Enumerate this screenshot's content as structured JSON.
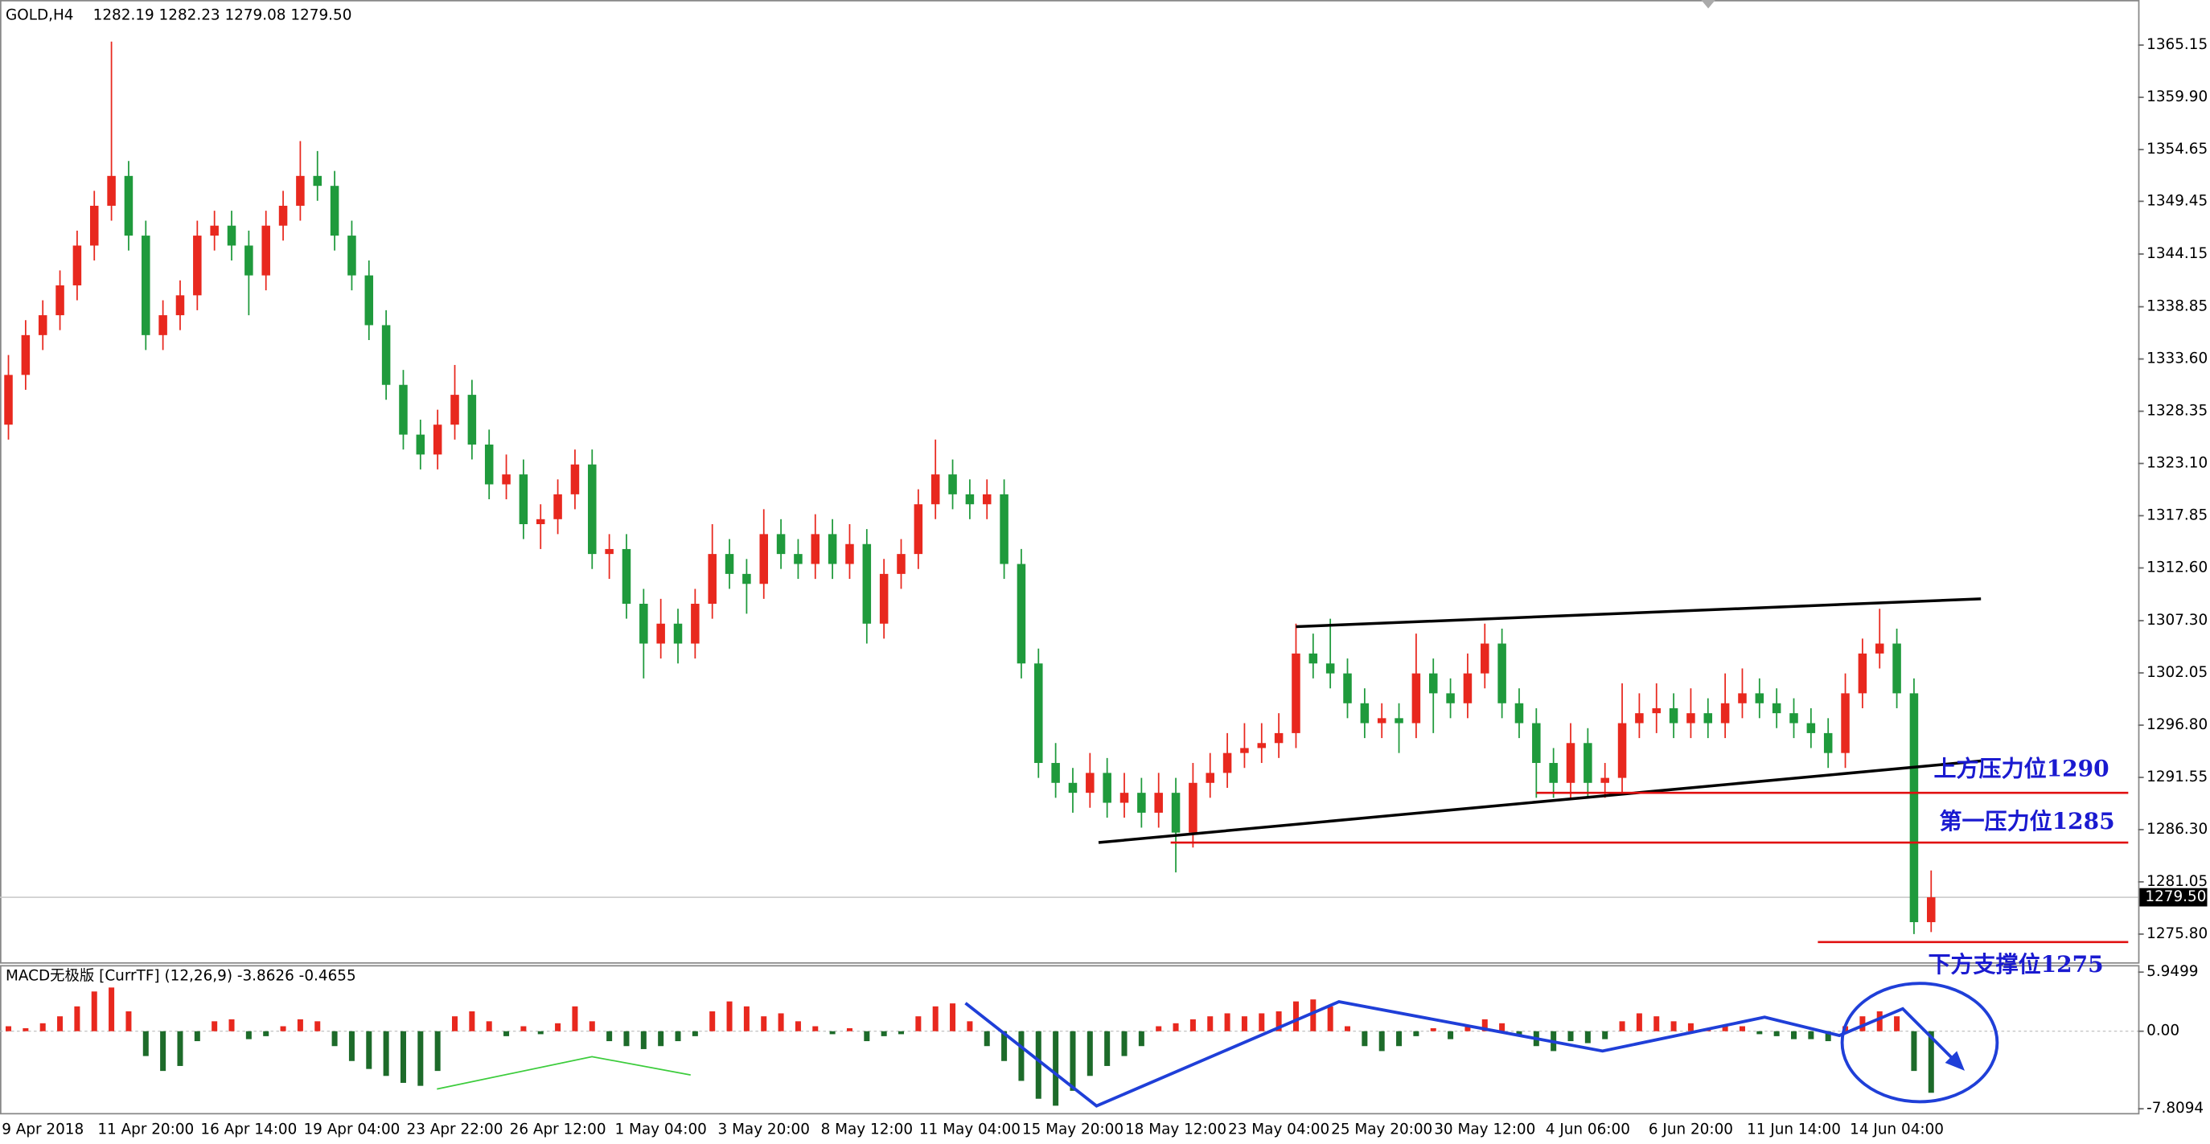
{
  "chart_data": [
    {
      "type": "candlestick",
      "title": "GOLD,H4",
      "ohlc": "1282.19 1282.23 1279.08 1279.50",
      "up_color": "#e8281e",
      "down_color": "#1f9a3c",
      "categories": [
        null,
        null,
        "9 Apr 2018",
        null,
        null,
        null,
        null,
        null,
        "11 Apr 20:00",
        null,
        null,
        null,
        null,
        null,
        "16 Apr 14:00",
        null,
        null,
        null,
        null,
        null,
        "19 Apr 04:00",
        null,
        null,
        null,
        null,
        null,
        "23 Apr 22:00",
        null,
        null,
        null,
        null,
        null,
        "26 Apr 12:00",
        null,
        null,
        null,
        null,
        null,
        "1 May 04:00",
        null,
        null,
        null,
        null,
        null,
        "3 May 20:00",
        null,
        null,
        null,
        null,
        null,
        "8 May 12:00",
        null,
        null,
        null,
        null,
        null,
        "11 May 04:00",
        null,
        null,
        null,
        null,
        null,
        "15 May 20:00",
        null,
        null,
        null,
        null,
        null,
        "18 May 12:00",
        null,
        null,
        null,
        null,
        null,
        "23 May 04:00",
        null,
        null,
        null,
        null,
        null,
        "25 May 20:00",
        null,
        null,
        null,
        null,
        null,
        "30 May 12:00",
        null,
        null,
        null,
        null,
        null,
        "4 Jun 06:00",
        null,
        null,
        null,
        null,
        null,
        "6 Jun 20:00",
        null,
        null,
        null,
        null,
        null,
        "11 Jun 14:00",
        null,
        null,
        null,
        null,
        null,
        "14 Jun 04:00",
        null,
        null
      ],
      "candles": [
        [
          1327,
          1334,
          1325.5,
          1332
        ],
        [
          1332,
          1337.5,
          1330.5,
          1336
        ],
        [
          1336,
          1339.5,
          1334.5,
          1338
        ],
        [
          1338,
          1342.5,
          1336.5,
          1341
        ],
        [
          1341,
          1346.5,
          1339.5,
          1345
        ],
        [
          1345,
          1350.5,
          1343.5,
          1349
        ],
        [
          1349,
          1365.5,
          1347.5,
          1352
        ],
        [
          1352,
          1353.5,
          1344.5,
          1346
        ],
        [
          1346,
          1347.5,
          1334.5,
          1336
        ],
        [
          1336,
          1339.5,
          1334.5,
          1338
        ],
        [
          1338,
          1341.5,
          1336.5,
          1340
        ],
        [
          1340,
          1347.5,
          1338.5,
          1346
        ],
        [
          1346,
          1348.5,
          1344.5,
          1347
        ],
        [
          1347,
          1348.5,
          1343.5,
          1345
        ],
        [
          1345,
          1346.5,
          1338,
          1342
        ],
        [
          1342,
          1348.5,
          1340.5,
          1347
        ],
        [
          1347,
          1350.5,
          1345.5,
          1349
        ],
        [
          1349,
          1355.5,
          1347.5,
          1352
        ],
        [
          1352,
          1354.5,
          1349.5,
          1351
        ],
        [
          1351,
          1352.5,
          1344.5,
          1346
        ],
        [
          1346,
          1347.5,
          1340.5,
          1342
        ],
        [
          1342,
          1343.5,
          1335.5,
          1337
        ],
        [
          1337,
          1338.5,
          1329.5,
          1331
        ],
        [
          1331,
          1332.5,
          1324.5,
          1326
        ],
        [
          1326,
          1327.5,
          1322.5,
          1324
        ],
        [
          1324,
          1328.5,
          1322.5,
          1327
        ],
        [
          1327,
          1333,
          1325.5,
          1330
        ],
        [
          1330,
          1331.5,
          1323.5,
          1325
        ],
        [
          1325,
          1326.5,
          1319.5,
          1321
        ],
        [
          1321,
          1324,
          1319.5,
          1322
        ],
        [
          1322,
          1323.5,
          1315.5,
          1317
        ],
        [
          1317,
          1319,
          1314.5,
          1317.5
        ],
        [
          1317.5,
          1321.5,
          1316,
          1320
        ],
        [
          1320,
          1324.5,
          1318.5,
          1323
        ],
        [
          1323,
          1324.5,
          1312.5,
          1314
        ],
        [
          1314,
          1316,
          1311.5,
          1314.5
        ],
        [
          1314.5,
          1316,
          1307.5,
          1309
        ],
        [
          1309,
          1310.5,
          1301.5,
          1305
        ],
        [
          1305,
          1309.5,
          1303.5,
          1307
        ],
        [
          1307,
          1308.5,
          1303,
          1305
        ],
        [
          1305,
          1310.5,
          1303.5,
          1309
        ],
        [
          1309,
          1317,
          1307.5,
          1314
        ],
        [
          1314,
          1315.5,
          1310.5,
          1312
        ],
        [
          1312,
          1313.5,
          1308,
          1311
        ],
        [
          1311,
          1318.5,
          1309.5,
          1316
        ],
        [
          1316,
          1317.5,
          1312.5,
          1314
        ],
        [
          1314,
          1315.5,
          1311.5,
          1313
        ],
        [
          1313,
          1318,
          1311.5,
          1316
        ],
        [
          1316,
          1317.5,
          1311.5,
          1313
        ],
        [
          1313,
          1317,
          1311.5,
          1315
        ],
        [
          1315,
          1316.5,
          1305,
          1307
        ],
        [
          1307,
          1313.5,
          1305.5,
          1312
        ],
        [
          1312,
          1315.5,
          1310.5,
          1314
        ],
        [
          1314,
          1320.5,
          1312.5,
          1319
        ],
        [
          1319,
          1325.5,
          1317.5,
          1322
        ],
        [
          1322,
          1323.5,
          1318.5,
          1320
        ],
        [
          1320,
          1321.5,
          1317.5,
          1319
        ],
        [
          1319,
          1321.5,
          1317.5,
          1320
        ],
        [
          1320,
          1321.5,
          1311.5,
          1313
        ],
        [
          1313,
          1314.5,
          1301.5,
          1303
        ],
        [
          1303,
          1304.5,
          1291.5,
          1293
        ],
        [
          1293,
          1295,
          1289.5,
          1291
        ],
        [
          1291,
          1292.5,
          1288,
          1290
        ],
        [
          1290,
          1294,
          1288.5,
          1292
        ],
        [
          1292,
          1293.5,
          1287.5,
          1289
        ],
        [
          1289,
          1292,
          1287.5,
          1290
        ],
        [
          1290,
          1291.5,
          1286.5,
          1288
        ],
        [
          1288,
          1292,
          1286.5,
          1290
        ],
        [
          1290,
          1291.5,
          1282,
          1286
        ],
        [
          1286,
          1293,
          1284.5,
          1291
        ],
        [
          1291,
          1294,
          1289.5,
          1292
        ],
        [
          1292,
          1296,
          1290.5,
          1294
        ],
        [
          1294,
          1297,
          1292.5,
          1294.5
        ],
        [
          1294.5,
          1297,
          1293,
          1295
        ],
        [
          1295,
          1298,
          1293.5,
          1296
        ],
        [
          1296,
          1307,
          1294.5,
          1304
        ],
        [
          1304,
          1306,
          1301.5,
          1303
        ],
        [
          1303,
          1307.5,
          1300.5,
          1302
        ],
        [
          1302,
          1303.5,
          1297.5,
          1299
        ],
        [
          1299,
          1300.5,
          1295.5,
          1297
        ],
        [
          1297,
          1299,
          1295.5,
          1297.5
        ],
        [
          1297.5,
          1299,
          1294,
          1297
        ],
        [
          1297,
          1306,
          1295.5,
          1302
        ],
        [
          1302,
          1303.5,
          1296,
          1300
        ],
        [
          1300,
          1301.5,
          1297.5,
          1299
        ],
        [
          1299,
          1304,
          1297.5,
          1302
        ],
        [
          1302,
          1307,
          1300.5,
          1305
        ],
        [
          1305,
          1306.5,
          1297.5,
          1299
        ],
        [
          1299,
          1300.5,
          1295.5,
          1297
        ],
        [
          1297,
          1298.5,
          1289.5,
          1293
        ],
        [
          1293,
          1294.5,
          1289.5,
          1291
        ],
        [
          1291,
          1297,
          1289.5,
          1295
        ],
        [
          1295,
          1296.5,
          1289.5,
          1291
        ],
        [
          1291,
          1293,
          1289.5,
          1291.5
        ],
        [
          1291.5,
          1301,
          1290,
          1297
        ],
        [
          1297,
          1300,
          1295.5,
          1298
        ],
        [
          1298,
          1301,
          1296,
          1298.5
        ],
        [
          1298.5,
          1300,
          1295.5,
          1297
        ],
        [
          1297,
          1300.5,
          1295.5,
          1298
        ],
        [
          1298,
          1299.5,
          1295.5,
          1297
        ],
        [
          1297,
          1302,
          1295.5,
          1299
        ],
        [
          1299,
          1302.5,
          1297.5,
          1300
        ],
        [
          1300,
          1301.5,
          1297.5,
          1299
        ],
        [
          1299,
          1300.5,
          1296.5,
          1298
        ],
        [
          1298,
          1299.5,
          1295.5,
          1297
        ],
        [
          1297,
          1298.5,
          1294.5,
          1296
        ],
        [
          1296,
          1297.5,
          1292.5,
          1294
        ],
        [
          1294,
          1302,
          1292.5,
          1300
        ],
        [
          1300,
          1305.5,
          1298.5,
          1304
        ],
        [
          1304,
          1308.5,
          1302.5,
          1305
        ],
        [
          1305,
          1306.5,
          1298.5,
          1300
        ],
        [
          1300,
          1301.5,
          1275.8,
          1277
        ],
        [
          1277,
          1282.2,
          1276,
          1279.5
        ]
      ],
      "ylim": [
        1272.97,
        1369.68
      ],
      "yticks": [
        1365.15,
        {
          "value": 1359.9,
          "label": "1359.90"
        },
        1354.65,
        1349.45,
        1344.15,
        1338.85,
        {
          "value": 1333.6,
          "label": "1333.60"
        },
        1328.35,
        {
          "value": 1323.1,
          "label": "1323.10"
        },
        1317.85,
        {
          "value": 1312.6,
          "label": "1312.60"
        },
        {
          "value": 1307.3,
          "label": "1307.30"
        },
        1302.05,
        {
          "value": 1296.8,
          "label": "1296.80"
        },
        1291.55,
        {
          "value": 1286.3,
          "label": "1286.30"
        },
        1281.05,
        {
          "value": 1275.8,
          "label": "1275.80"
        }
      ],
      "last_price": {
        "value": 1279.5,
        "label": "1279.50"
      },
      "trendlines": [
        {
          "x": [
            75,
            114.9
          ],
          "y": [
            1306.7,
            1309.5
          ]
        },
        {
          "x": [
            63.5,
            114.9
          ],
          "y": [
            1285,
            1293.2
          ]
        }
      ],
      "levels": [
        {
          "label": "上方压力位1290",
          "value": 1290,
          "from": 89
        },
        {
          "label": "第一压力位1285",
          "value": 1285,
          "from": 67.7
        },
        {
          "label": "下方支撑位1275",
          "value": 1275,
          "from": 105.4
        }
      ]
    },
    {
      "type": "bar",
      "title": "MACD无极版 [CurrTF] (12,26,9) -3.8626 -0.4655",
      "pos_color": "#e8281e",
      "neg_color": "#1d6b2a",
      "values": [
        0.5,
        0.3,
        0.8,
        1.5,
        2.5,
        4,
        4.4,
        2,
        -2.5,
        -4,
        -3.5,
        -1,
        1,
        1.2,
        -0.8,
        -0.5,
        0.5,
        1.2,
        1,
        -1.5,
        -3,
        -3.8,
        -4.5,
        -5.2,
        -5.5,
        -4,
        1.5,
        2,
        1,
        -0.5,
        0.5,
        -0.3,
        0.8,
        2.5,
        1,
        -1,
        -1.5,
        -1.8,
        -1.5,
        -1,
        -0.5,
        2,
        3,
        2.5,
        1.5,
        1.8,
        1,
        0.5,
        -0.3,
        0.3,
        -1,
        -0.5,
        -0.3,
        1.5,
        2.5,
        2.8,
        1,
        -1.5,
        -3,
        -5,
        -6.8,
        -7.5,
        -6,
        -4.5,
        -3.5,
        -2.5,
        -1.5,
        0.5,
        0.8,
        1.2,
        1.5,
        1.8,
        1.5,
        1.8,
        2,
        3,
        3.2,
        2.5,
        0.5,
        -1.5,
        -2,
        -1.5,
        -0.5,
        0.3,
        -0.8,
        0.5,
        1.2,
        0.8,
        -0.5,
        -1.5,
        -2,
        -1,
        -1.2,
        -0.8,
        1,
        1.8,
        1.5,
        1,
        0.8,
        0.3,
        0.5,
        0.5,
        -0.3,
        -0.5,
        -0.8,
        -0.8,
        -1,
        0.5,
        1.5,
        2,
        1.5,
        -4,
        -6.2
      ],
      "ylim": [
        -8.235,
        6.659
      ],
      "yticks": [
        5.9499,
        {
          "value": 0,
          "label": "0.00"
        },
        -7.8094
      ]
    }
  ]
}
